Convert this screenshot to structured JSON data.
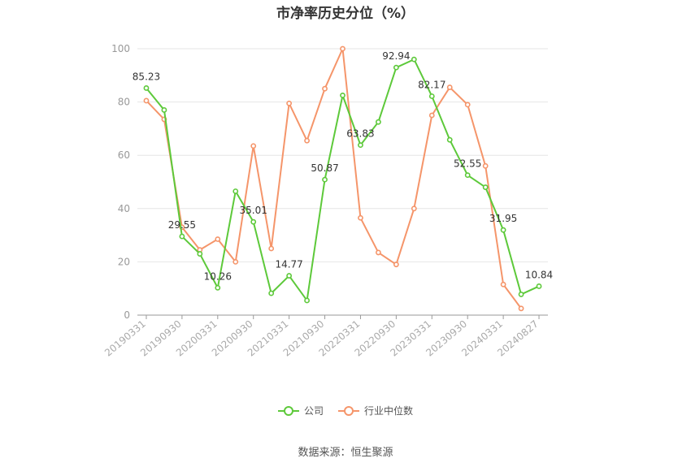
{
  "title": "市净率历史分位（%）",
  "source": "数据来源：恒生聚源",
  "chart_data": {
    "type": "line",
    "title": "市净率历史分位（%）",
    "ylim": [
      0,
      100
    ],
    "yticks": [
      0,
      20,
      40,
      60,
      80,
      100
    ],
    "grid": true,
    "legend_position": "bottom-center",
    "x_tick_labels": [
      "20190331",
      "20190930",
      "20200331",
      "20200930",
      "20210331",
      "20210930",
      "20220331",
      "20220930",
      "20230331",
      "20230930",
      "20240331",
      "20240827"
    ],
    "x_tick_indices": [
      0,
      2,
      4,
      6,
      8,
      10,
      12,
      14,
      16,
      18,
      20,
      22
    ],
    "series": [
      {
        "name": "公司",
        "color": "#5dc93a",
        "values": [
          85.23,
          77.0,
          29.55,
          23.0,
          10.26,
          46.5,
          35.01,
          8.2,
          14.77,
          5.5,
          50.87,
          82.5,
          63.83,
          72.5,
          92.94,
          96.0,
          82.17,
          65.8,
          52.55,
          48.0,
          31.95,
          7.8,
          10.84
        ],
        "labels": {
          "0": "85.23",
          "2": "29.55",
          "4": "10.26",
          "6": "35.01",
          "8": "14.77",
          "10": "50.87",
          "12": "63.83",
          "14": "92.94",
          "16": "82.17",
          "18": "52.55",
          "20": "31.95",
          "22": "10.84"
        }
      },
      {
        "name": "行业中位数",
        "color": "#f5956a",
        "values": [
          80.5,
          73.5,
          33.0,
          24.5,
          28.5,
          20.0,
          63.5,
          25.0,
          79.5,
          65.5,
          85.0,
          100.0,
          36.5,
          23.5,
          19.0,
          40.0,
          75.0,
          85.5,
          79.0,
          56.0,
          11.5,
          2.5
        ]
      }
    ]
  }
}
